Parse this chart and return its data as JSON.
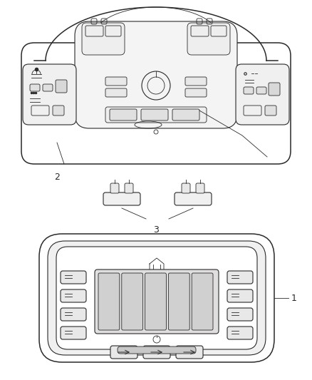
{
  "bg_color": "#ffffff",
  "lc": "#2a2a2a",
  "lc_light": "#555555",
  "fig_width": 4.38,
  "fig_height": 5.33,
  "label_1": "1",
  "label_2": "2",
  "label_3": "3"
}
